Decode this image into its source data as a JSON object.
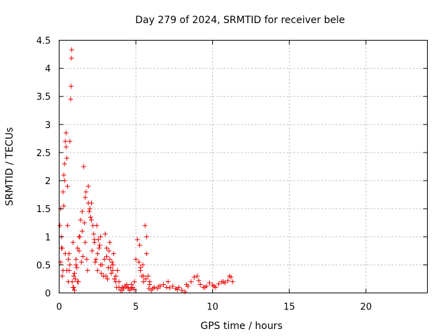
{
  "chart_data": {
    "type": "scatter",
    "title": "Day 279 of 2024, SRMTID for receiver bele",
    "xlabel": "GPS time / hours",
    "ylabel": "SRMTID / TECUs",
    "xlim": [
      0,
      24
    ],
    "ylim": [
      0,
      4.5
    ],
    "xticks": [
      "0",
      "5",
      "10",
      "15",
      "20"
    ],
    "yticks": [
      "0",
      "0.5",
      "1",
      "1.5",
      "2",
      "2.5",
      "3",
      "3.5",
      "4",
      "4.5"
    ],
    "grid": true,
    "marker": "+",
    "series": [
      {
        "name": "SRMTID",
        "color": "#ee0000",
        "x": [
          0.05,
          0.1,
          0.15,
          0.2,
          0.25,
          0.3,
          0.35,
          0.4,
          0.45,
          0.5,
          0.55,
          0.6,
          0.65,
          0.7,
          0.75,
          0.78,
          0.8,
          0.82,
          0.85,
          0.9,
          0.95,
          1.0,
          1.05,
          1.1,
          1.2,
          1.3,
          1.4,
          1.5,
          1.6,
          1.7,
          1.8,
          1.9,
          2.0,
          2.1,
          2.2,
          2.3,
          2.4,
          2.5,
          2.6,
          2.7,
          2.8,
          2.9,
          3.0,
          3.1,
          3.2,
          3.3,
          3.4,
          3.5,
          3.6,
          3.7,
          3.8,
          3.9,
          4.0,
          4.1,
          4.2,
          4.3,
          4.4,
          4.5,
          4.6,
          4.7,
          4.8,
          4.9,
          5.0,
          5.1,
          5.2,
          5.3,
          5.4,
          5.5,
          5.6,
          5.7,
          5.8,
          5.9,
          6.0,
          6.2,
          6.4,
          6.6,
          6.8,
          7.0,
          7.2,
          7.4,
          7.6,
          7.8,
          8.0,
          8.2,
          8.4,
          8.6,
          8.8,
          9.0,
          9.2,
          9.4,
          9.6,
          9.8,
          10.0,
          10.2,
          10.4,
          10.6,
          10.8,
          11.0,
          11.2,
          11.3,
          0.1,
          0.2,
          0.3,
          0.4,
          0.5,
          0.6,
          0.7,
          0.9,
          1.0,
          1.1,
          1.2,
          1.3,
          1.5,
          1.7,
          1.9,
          2.1,
          2.3,
          2.5,
          2.7,
          2.9,
          3.1,
          3.3,
          3.5,
          3.7,
          3.9,
          4.1,
          4.3,
          4.5,
          4.7,
          4.9,
          5.3,
          5.5,
          5.7,
          5.9,
          6.1,
          6.5,
          7.1,
          7.7,
          8.3,
          9.1,
          9.5,
          10.1,
          10.7,
          11.1,
          0.15,
          0.35,
          0.55,
          0.95,
          1.15,
          1.35,
          1.55,
          1.75,
          1.95,
          2.15,
          2.35,
          2.55,
          2.75,
          2.95,
          3.15,
          3.35,
          3.55,
          3.75,
          5.25,
          5.45,
          5.65,
          5.85,
          0.25,
          0.45,
          0.65,
          1.25,
          1.45,
          1.65,
          1.85,
          2.05,
          2.25,
          2.45,
          2.65,
          3.05,
          3.25,
          3.45
        ],
        "y": [
          1.2,
          1.5,
          1.0,
          0.3,
          1.8,
          2.1,
          2.3,
          2.7,
          2.85,
          2.4,
          1.9,
          0.6,
          0.4,
          2.7,
          3.45,
          3.68,
          4.18,
          4.33,
          0.2,
          0.1,
          0.3,
          0.05,
          0.25,
          0.5,
          0.8,
          1.0,
          1.3,
          1.1,
          2.25,
          1.7,
          0.6,
          1.9,
          1.5,
          1.6,
          1.2,
          0.9,
          0.6,
          0.4,
          0.8,
          1.0,
          0.5,
          0.3,
          1.05,
          0.8,
          0.45,
          0.6,
          0.35,
          0.5,
          0.25,
          0.3,
          0.4,
          0.2,
          0.05,
          0.1,
          0.08,
          0.12,
          0.15,
          0.1,
          0.05,
          0.08,
          0.1,
          0.2,
          0.6,
          0.95,
          0.55,
          0.4,
          0.3,
          0.2,
          1.2,
          0.7,
          0.3,
          0.15,
          0.05,
          0.1,
          0.08,
          0.12,
          0.15,
          0.1,
          0.09,
          0.12,
          0.08,
          0.1,
          0.05,
          0.02,
          0.12,
          0.2,
          0.28,
          0.3,
          0.15,
          0.1,
          0.12,
          0.18,
          0.14,
          0.1,
          0.16,
          0.2,
          0.18,
          0.22,
          0.28,
          0.2,
          0.55,
          0.8,
          1.55,
          0.7,
          0.4,
          0.2,
          0.5,
          0.9,
          0.35,
          0.6,
          0.2,
          0.75,
          1.45,
          0.9,
          1.6,
          1.3,
          0.95,
          0.7,
          0.5,
          0.3,
          0.65,
          0.9,
          0.4,
          0.2,
          0.1,
          0.05,
          0.12,
          0.08,
          0.15,
          0.06,
          0.45,
          0.3,
          1.0,
          0.2,
          0.08,
          0.12,
          0.2,
          0.06,
          0.15,
          0.22,
          0.1,
          0.12,
          0.2,
          0.3,
          0.8,
          2.0,
          1.2,
          0.1,
          0.45,
          1.0,
          0.65,
          1.8,
          1.45,
          0.75,
          0.55,
          0.95,
          0.35,
          0.6,
          0.25,
          0.45,
          0.7,
          0.1,
          0.85,
          0.5,
          0.25,
          0.08,
          0.4,
          2.6,
          0.7,
          0.2,
          0.55,
          1.25,
          0.4,
          1.35,
          1.05,
          1.2,
          0.85,
          0.3,
          0.75,
          0.55
        ]
      }
    ]
  }
}
